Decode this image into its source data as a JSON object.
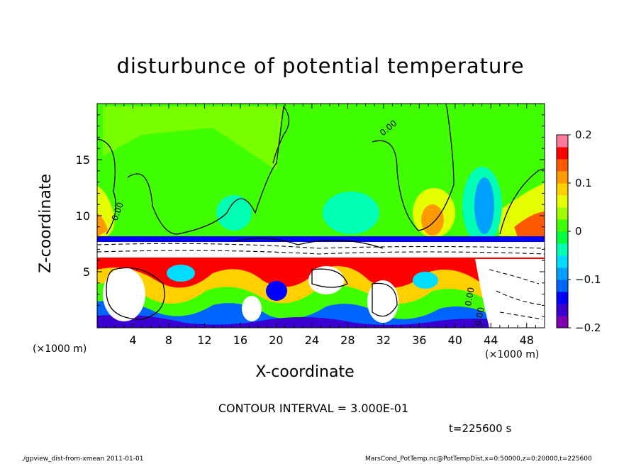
{
  "chart_data": {
    "type": "heatmap",
    "title": "disturbunce of potential temperature",
    "xlabel": "X-coordinate",
    "ylabel": "Z-coordinate",
    "x_unit": "(×1000 m)",
    "y_unit": "(×1000 m)",
    "xlim": [
      0,
      50
    ],
    "ylim": [
      0,
      20
    ],
    "x_ticks": [
      4,
      8,
      12,
      16,
      20,
      24,
      28,
      32,
      36,
      40,
      44,
      48
    ],
    "y_ticks": [
      5,
      10,
      15
    ],
    "colorbar": {
      "range": [
        -0.2,
        0.2
      ],
      "tick_values": [
        0.2,
        0.1,
        0,
        -0.1,
        -0.2
      ],
      "tick_labels": [
        "0.2",
        "0.1",
        "0",
        "−0.1",
        "−0.2"
      ],
      "colors": [
        "#7f00b2",
        "#3b00d0",
        "#0000ff",
        "#0064ff",
        "#00a0ff",
        "#00dcff",
        "#00ffb4",
        "#00ff40",
        "#40ff00",
        "#9fff00",
        "#e6ff00",
        "#ffd000",
        "#ff9a00",
        "#ff5a00",
        "#ff0000",
        "#ff7a9a"
      ]
    },
    "contour_labels": [
      "0.00",
      "0.00",
      "0.00",
      "0.00"
    ],
    "contour_interval": "CONTOUR INTERVAL = 3.000E-01",
    "time": "t=225600 s"
  },
  "footer": {
    "left": "./gpview_dist-from-xmean  2011-01-01",
    "right": "MarsCond_PotTemp.nc@PotTempDist,x=0:50000,z=0:20000,t=225600"
  }
}
